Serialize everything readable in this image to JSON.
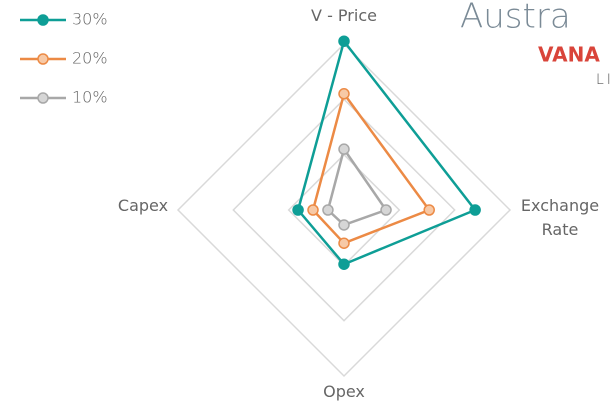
{
  "chart_data": {
    "type": "radar",
    "categories": [
      "V - Price",
      "Exchange Rate",
      "Opex",
      "Capex"
    ],
    "series": [
      {
        "name": "30%",
        "color": "#0e9e96",
        "marker_fill": "#0e9e96",
        "values": [
          30.5,
          23.7,
          9.8,
          8.3
        ]
      },
      {
        "name": "20%",
        "color": "#ec8a45",
        "marker_fill": "#f7c9a6",
        "values": [
          21,
          15.4,
          6,
          5.6
        ]
      },
      {
        "name": "10%",
        "color": "#a8a8a8",
        "marker_fill": "#d6d6d6",
        "values": [
          11,
          7.6,
          2.7,
          2.9
        ]
      }
    ],
    "rlim": [
      0,
      30
    ],
    "rticks": [
      10,
      20,
      30
    ],
    "grid": true,
    "legend": "top-left"
  },
  "logo": {
    "line1": "Austra",
    "line2": "VANA",
    "line3": "LI"
  }
}
